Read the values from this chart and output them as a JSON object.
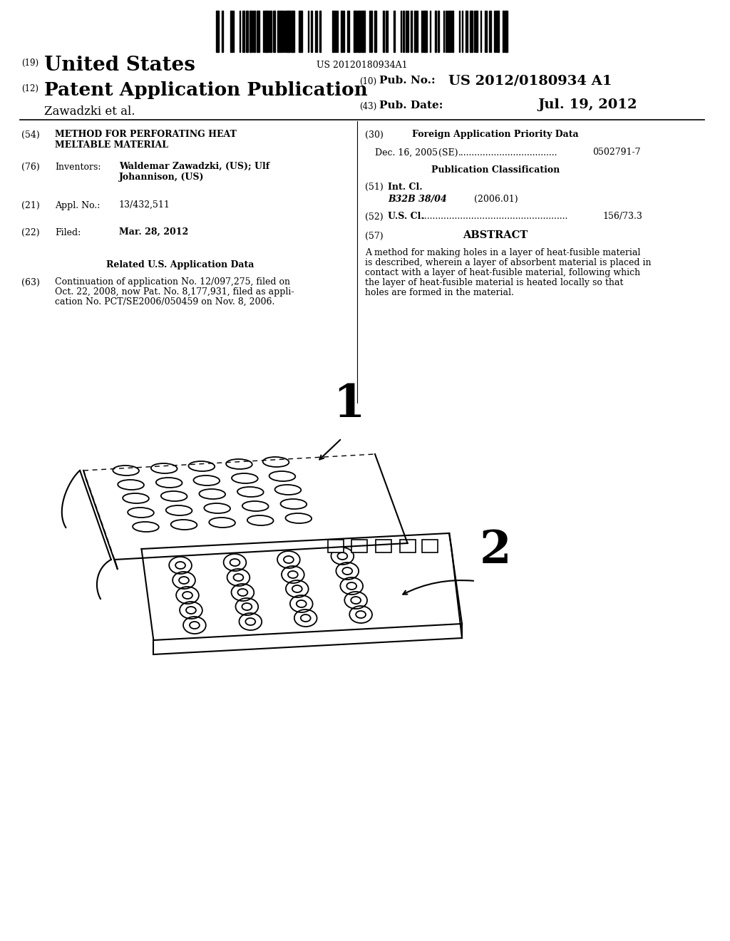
{
  "bg_color": "#ffffff",
  "barcode_text": "US 20120180934A1",
  "header": {
    "number_19": "(19)",
    "united_states": "United States",
    "number_12": "(12)",
    "patent_app": "Patent Application Publication",
    "zawadzki": "Zawadzki et al.",
    "number_10": "(10)",
    "pub_no_label": "Pub. No.:",
    "pub_no_value": "US 2012/0180934 A1",
    "number_43": "(43)",
    "pub_date_label": "Pub. Date:",
    "pub_date_value": "Jul. 19, 2012"
  },
  "left_col": {
    "item54_num": "(54)",
    "item54_title1": "METHOD FOR PERFORATING HEAT",
    "item54_title2": "MELTABLE MATERIAL",
    "item76_num": "(76)",
    "item76_label": "Inventors:",
    "item76_value1": "Waldemar Zawadzki, (US); Ulf",
    "item76_value2": "Johannison, (US)",
    "item21_num": "(21)",
    "item21_label": "Appl. No.:",
    "item21_value": "13/432,511",
    "item22_num": "(22)",
    "item22_label": "Filed:",
    "item22_value": "Mar. 28, 2012",
    "related_title": "Related U.S. Application Data",
    "item63_num": "(63)",
    "item63_text1": "Continuation of application No. 12/097,275, filed on",
    "item63_text2": "Oct. 22, 2008, now Pat. No. 8,177,931, filed as appli-",
    "item63_text3": "cation No. PCT/SE2006/050459 on Nov. 8, 2006."
  },
  "right_col": {
    "item30_num": "(30)",
    "item30_title": "Foreign Application Priority Data",
    "item30_date": "Dec. 16, 2005",
    "item30_country": "(SE)",
    "item30_dots": "....................................",
    "item30_number": "0502791-7",
    "pub_class_title": "Publication Classification",
    "item51_num": "(51)",
    "item51_label": "Int. Cl.",
    "item51_class": "B32B 38/04",
    "item51_year": "(2006.01)",
    "item52_num": "(52)",
    "item52_label": "U.S. Cl.",
    "item52_dots": ".....................................................",
    "item52_value": "156/73.3",
    "item57_num": "(57)",
    "item57_title": "ABSTRACT",
    "abstract_lines": [
      "A method for making holes in a layer of heat-fusible material",
      "is described, wherein a layer of absorbent material is placed in",
      "contact with a layer of heat-fusible material, following which",
      "the layer of heat-fusible material is heated locally so that",
      "holes are formed in the material."
    ]
  }
}
